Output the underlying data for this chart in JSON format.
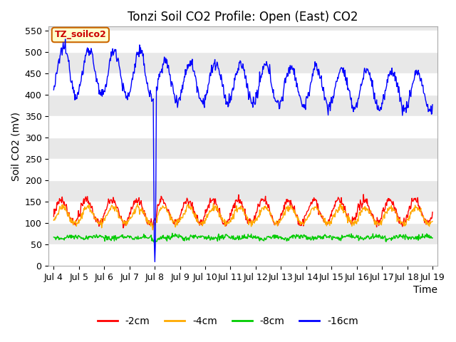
{
  "title": "Tonzi Soil CO2 Profile: Open (East) CO2",
  "ylabel": "Soil CO2 (mV)",
  "xlabel_label": "Time",
  "ylim": [
    0,
    560
  ],
  "yticks": [
    0,
    50,
    100,
    150,
    200,
    250,
    300,
    350,
    400,
    450,
    500,
    550
  ],
  "xtick_labels": [
    "Jul 4",
    "Jul 5",
    "Jul 6",
    "Jul 7",
    "Jul 8",
    "Jul 9",
    "Jul 10",
    "Jul 11",
    "Jul 12",
    "Jul 13",
    "Jul 14",
    "Jul 15",
    "Jul 16",
    "Jul 17",
    "Jul 18",
    "Jul 19"
  ],
  "fig_bg_color": "#ffffff",
  "plot_bg_color": "#e8e8e8",
  "band_color": "#ffffff",
  "annotation_label": "TZ_soilco2",
  "annotation_bg": "#ffffcc",
  "annotation_border": "#cc6600",
  "legend_entries": [
    "-2cm",
    "-4cm",
    "-8cm",
    "-16cm"
  ],
  "legend_colors": [
    "#ff0000",
    "#ffaa00",
    "#00cc00",
    "#0000ff"
  ],
  "title_fontsize": 12,
  "axis_fontsize": 10,
  "tick_fontsize": 9,
  "legend_fontsize": 10
}
